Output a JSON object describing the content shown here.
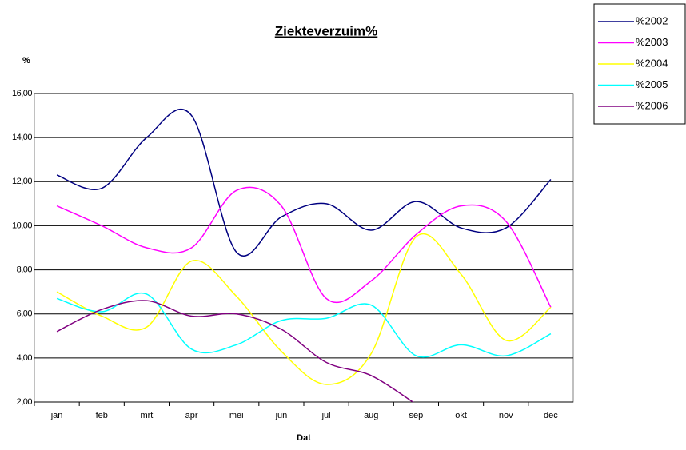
{
  "chart_data": {
    "type": "line",
    "title": "Ziekteverzuim%",
    "y_label": "%",
    "x_label": "Dat",
    "categories": [
      "jan",
      "feb",
      "mrt",
      "apr",
      "mei",
      "jun",
      "jul",
      "aug",
      "sep",
      "okt",
      "nov",
      "dec"
    ],
    "ylim": [
      2,
      16
    ],
    "yticks": [
      {
        "value": 2,
        "label": "2,00"
      },
      {
        "value": 4,
        "label": "4,00"
      },
      {
        "value": 6,
        "label": "6,00"
      },
      {
        "value": 8,
        "label": "8,00"
      },
      {
        "value": 10,
        "label": "10,00"
      },
      {
        "value": 12,
        "label": "12,00"
      },
      {
        "value": 14,
        "label": "14,00"
      },
      {
        "value": 16,
        "label": "16,00"
      }
    ],
    "grid": true,
    "legend": "top-right",
    "series": [
      {
        "name": "%2002",
        "color": "#000080",
        "values": [
          12.3,
          11.7,
          14.0,
          15.0,
          8.8,
          10.4,
          11.0,
          9.8,
          11.1,
          9.9,
          9.9,
          12.1
        ]
      },
      {
        "name": "%2003",
        "color": "#ff00ff",
        "values": [
          10.9,
          10.0,
          9.0,
          9.0,
          11.6,
          10.9,
          6.7,
          7.5,
          9.6,
          10.9,
          10.2,
          6.3
        ]
      },
      {
        "name": "%2004",
        "color": "#ffff00",
        "values": [
          7.0,
          5.9,
          5.4,
          8.4,
          6.8,
          4.3,
          2.8,
          4.2,
          9.5,
          7.8,
          4.8,
          6.3
        ]
      },
      {
        "name": "%2005",
        "color": "#00ffff",
        "values": [
          6.7,
          6.1,
          6.9,
          4.4,
          4.6,
          5.7,
          5.8,
          6.4,
          4.1,
          4.6,
          4.1,
          5.1
        ]
      },
      {
        "name": "%2006",
        "color": "#800080",
        "values": [
          5.2,
          6.2,
          6.6,
          5.9,
          6.0,
          5.3,
          3.8,
          3.2,
          1.9,
          null,
          null,
          null
        ]
      }
    ]
  }
}
